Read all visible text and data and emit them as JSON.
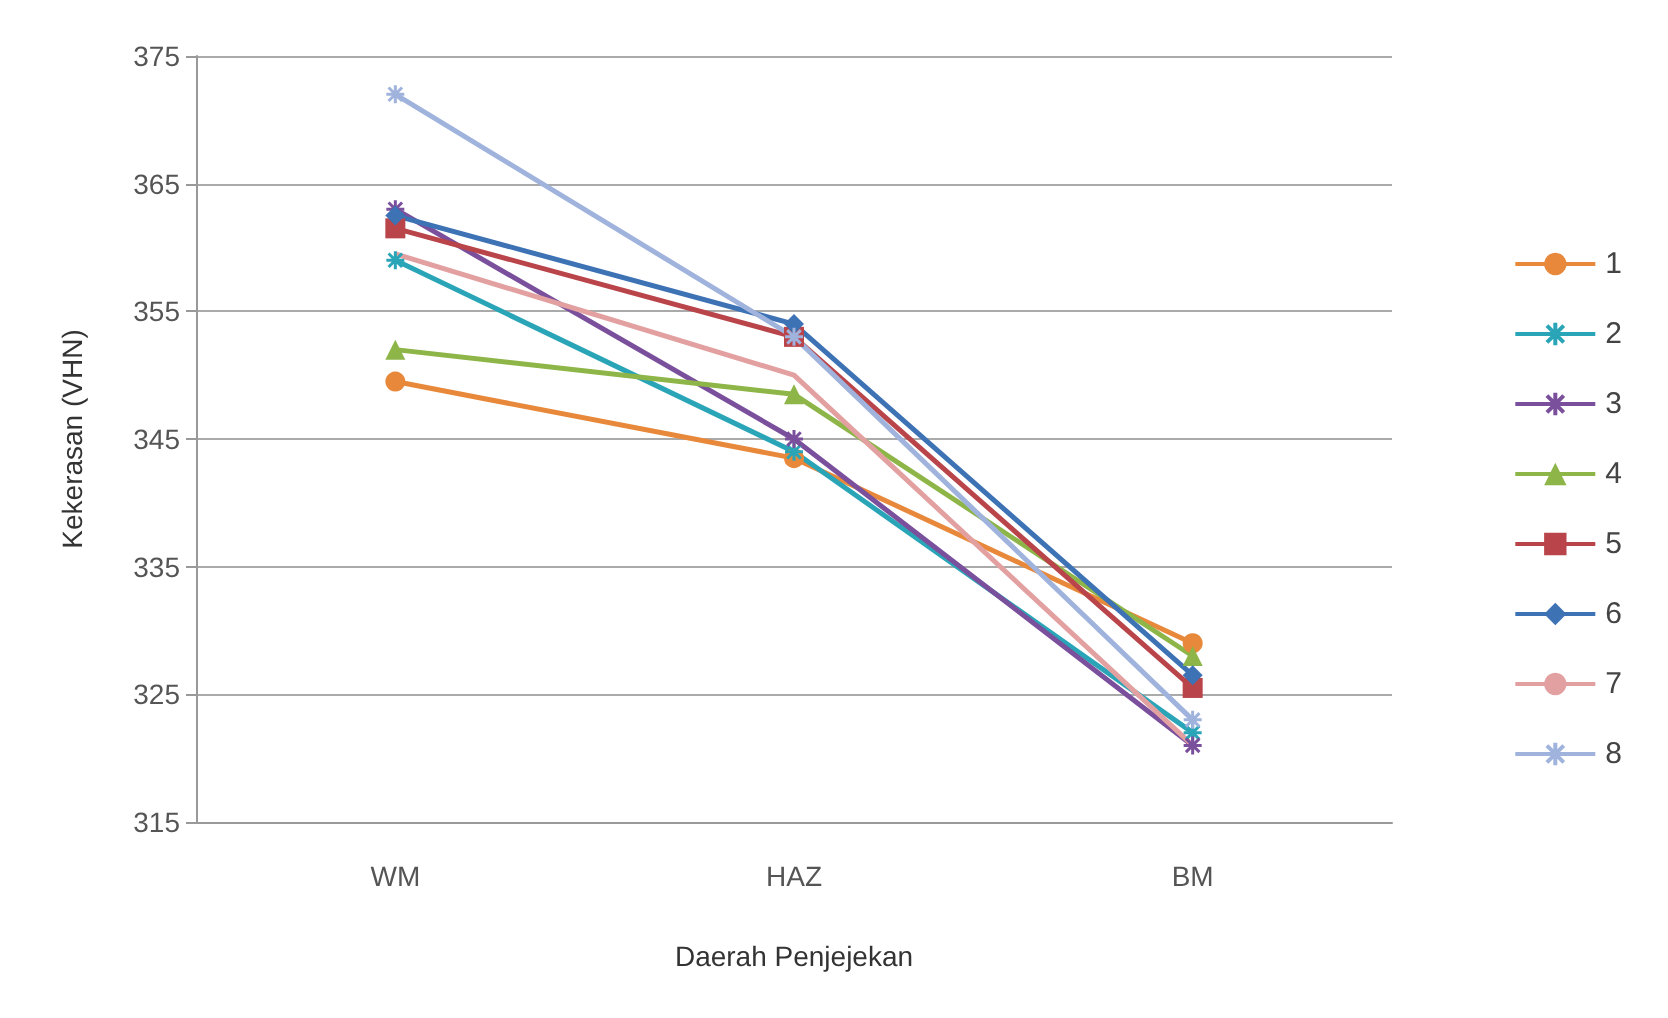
{
  "chart_data": {
    "type": "line",
    "xlabel": "Daerah Penjejekan",
    "ylabel": "Kekerasan (VHN)",
    "categories": [
      "WM",
      "HAZ",
      "BM"
    ],
    "ylim": [
      315,
      375
    ],
    "yticks": [
      315,
      325,
      335,
      345,
      355,
      365,
      375
    ],
    "grid": "y",
    "legend": "right",
    "series": [
      {
        "name": "1",
        "color": "#e8883a",
        "marker": "circle",
        "values": [
          349.5,
          343.5,
          329
        ]
      },
      {
        "name": "2",
        "color": "#2aa5b8",
        "marker": "cross",
        "values": [
          359,
          344,
          322
        ]
      },
      {
        "name": "3",
        "color": "#7a4f9c",
        "marker": "cross",
        "values": [
          363,
          345,
          321
        ]
      },
      {
        "name": "4",
        "color": "#8db548",
        "marker": "triangle",
        "values": [
          352,
          348.5,
          328
        ]
      },
      {
        "name": "5",
        "color": "#b9444a",
        "marker": "square",
        "values": [
          361.5,
          353,
          325.5
        ]
      },
      {
        "name": "6",
        "color": "#3d72b5",
        "marker": "diamond",
        "values": [
          362.5,
          354,
          326.5
        ]
      },
      {
        "name": "7",
        "color": "#e3a0a0",
        "marker": "none",
        "values": [
          359.5,
          350,
          321
        ]
      },
      {
        "name": "8",
        "color": "#9fb3dd",
        "marker": "cross",
        "values": [
          372,
          353,
          323
        ]
      }
    ]
  }
}
